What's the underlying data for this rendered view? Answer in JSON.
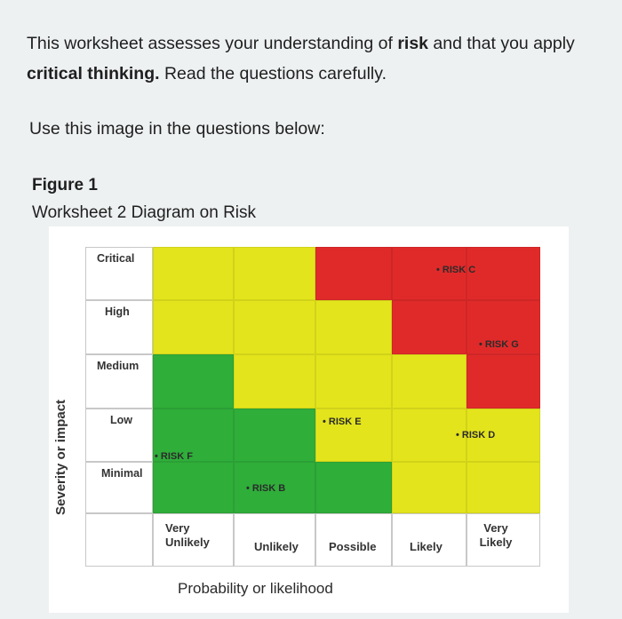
{
  "intro": {
    "part1": "This worksheet assesses your understanding of ",
    "risk_word": "risk",
    "part2": " and that you apply ",
    "critical_word": "critical thinking.",
    "part3": " Read the questions carefully."
  },
  "use_image_text": "Use this image in the questions below:",
  "figure": {
    "label": "Figure 1",
    "caption": "Worksheet 2 Diagram on Risk"
  },
  "matrix": {
    "severity_levels": [
      "Critical",
      "High",
      "Medium",
      "Low",
      "Minimal"
    ],
    "likelihood_levels": [
      "Very Unlikely",
      "Unlikely",
      "Possible",
      "Likely",
      "Very Likely"
    ],
    "y_axis_label": "Severity or impact",
    "x_axis_label": "Probability or likelihood",
    "colors": {
      "red": "#e02a2a",
      "yellow": "#e3e41c",
      "green": "#2fae3a"
    },
    "cell_colors": [
      [
        "yellow",
        "yellow",
        "red",
        "red",
        "red"
      ],
      [
        "yellow",
        "yellow",
        "yellow",
        "red",
        "red"
      ],
      [
        "green",
        "yellow",
        "yellow",
        "yellow",
        "red"
      ],
      [
        "green",
        "green",
        "yellow",
        "yellow",
        "yellow"
      ],
      [
        "green",
        "green",
        "green",
        "yellow",
        "yellow"
      ]
    ],
    "risks": [
      {
        "label": "RISK C",
        "severity": "Critical",
        "likelihood": "Very Likely"
      },
      {
        "label": "RISK G",
        "severity": "High",
        "likelihood": "Very Likely"
      },
      {
        "label": "RISK E",
        "severity": "Low",
        "likelihood": "Possible"
      },
      {
        "label": "RISK D",
        "severity": "Low",
        "likelihood": "Very Likely"
      },
      {
        "label": "RISK F",
        "severity": "Low",
        "likelihood": "Very Unlikely"
      },
      {
        "label": "RISK B",
        "severity": "Minimal",
        "likelihood": "Unlikely"
      }
    ]
  }
}
